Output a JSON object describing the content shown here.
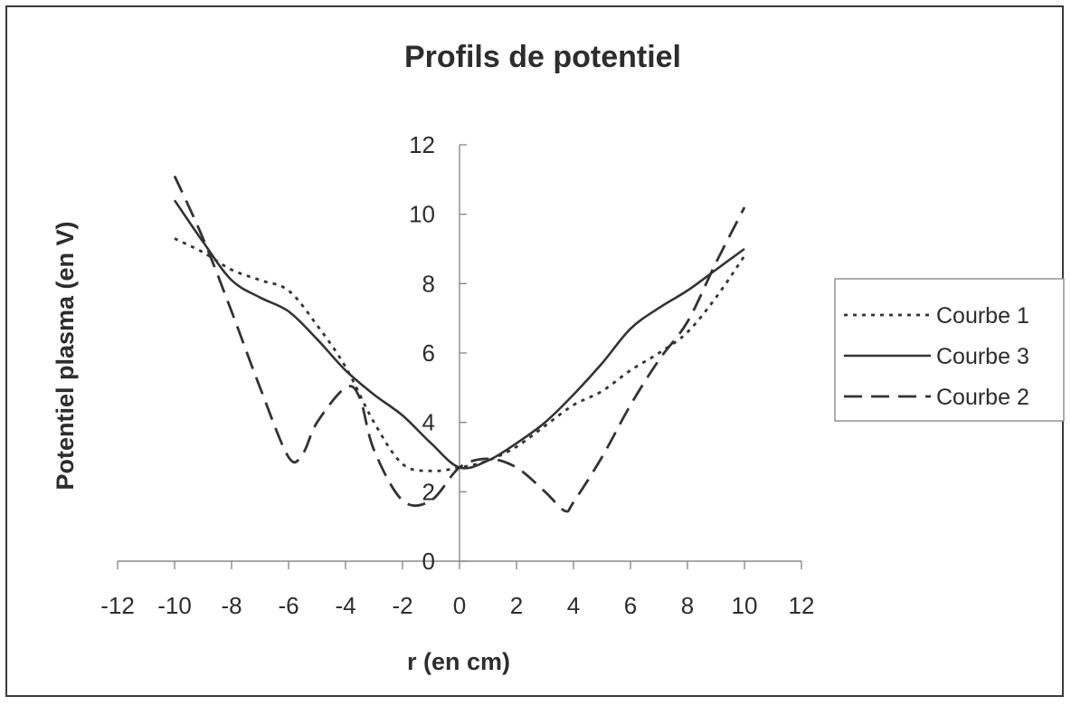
{
  "chart_data": {
    "type": "line",
    "title": "Profils de potentiel",
    "xlabel": "r (en cm)",
    "ylabel": "Potentiel plasma (en V)",
    "xlim": [
      -12,
      12
    ],
    "ylim": [
      0,
      12
    ],
    "xticks": [
      "-12",
      "-10",
      "-8",
      "-6",
      "-4",
      "-2",
      "0",
      "2",
      "4",
      "6",
      "8",
      "10",
      "12"
    ],
    "yticks": [
      "0",
      "2",
      "4",
      "6",
      "8",
      "10",
      "12"
    ],
    "grid": false,
    "legend_position": "right",
    "series": [
      {
        "name": "Courbe 1",
        "style": "dotted",
        "color": "#333333",
        "x": [
          -10,
          -9,
          -8,
          -7,
          -6,
          -5,
          -4,
          -3,
          -2,
          -1,
          0,
          1,
          2,
          3,
          4,
          5,
          6,
          7,
          8,
          9,
          10
        ],
        "y": [
          9.3,
          8.9,
          8.4,
          8.1,
          7.8,
          6.8,
          5.6,
          4.0,
          2.8,
          2.6,
          2.7,
          2.9,
          3.3,
          3.9,
          4.5,
          4.9,
          5.5,
          6.0,
          6.6,
          7.6,
          8.8
        ]
      },
      {
        "name": "Courbe 3",
        "style": "solid",
        "color": "#333333",
        "x": [
          -10,
          -9,
          -8,
          -7,
          -6,
          -5,
          -4,
          -3,
          -2,
          -1,
          0,
          1,
          2,
          3,
          4,
          5,
          6,
          7,
          8,
          9,
          10
        ],
        "y": [
          10.4,
          9.2,
          8.1,
          7.6,
          7.2,
          6.4,
          5.5,
          4.8,
          4.2,
          3.4,
          2.7,
          2.9,
          3.4,
          4.0,
          4.8,
          5.7,
          6.7,
          7.3,
          7.8,
          8.4,
          9.0
        ]
      },
      {
        "name": "Courbe 2",
        "style": "dashed",
        "color": "#333333",
        "x": [
          -10,
          -9,
          -8,
          -7,
          -6,
          -5.5,
          -5,
          -4,
          -3.5,
          -3,
          -2,
          -1,
          0,
          1,
          2,
          3,
          3.7,
          4,
          5,
          6,
          7,
          8,
          9,
          10
        ],
        "y": [
          11.1,
          9.3,
          7.2,
          5.0,
          3.0,
          3.1,
          4.0,
          5.0,
          4.7,
          3.2,
          1.75,
          1.75,
          2.7,
          2.95,
          2.7,
          2.0,
          1.45,
          1.7,
          3.0,
          4.5,
          5.8,
          6.9,
          8.6,
          10.2
        ]
      }
    ]
  }
}
